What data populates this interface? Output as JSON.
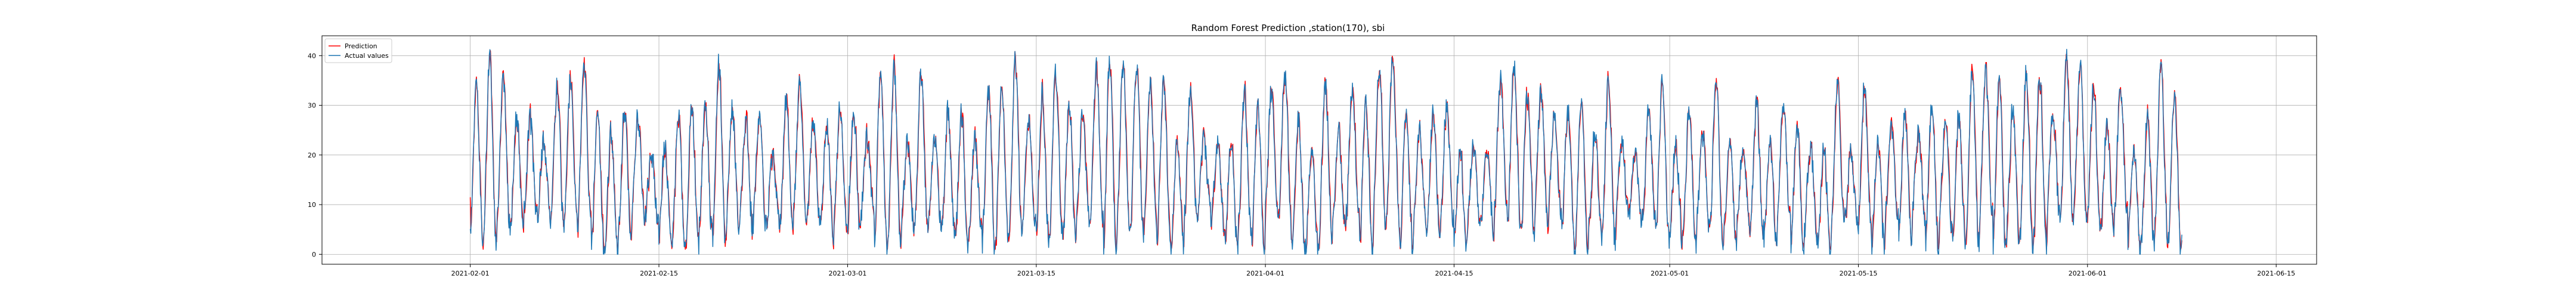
{
  "chart_data": {
    "type": "line",
    "title": "Random Forest Prediction ,station(170), sbi",
    "xlabel": "",
    "ylabel": "",
    "x_range": [
      "2021-01-20",
      "2021-06-20"
    ],
    "xlim": [
      "2021-01-21",
      "2021-06-18"
    ],
    "ylim": [
      -2,
      44
    ],
    "x_ticks": [
      "2021-02-01",
      "2021-02-15",
      "2021-03-01",
      "2021-03-15",
      "2021-04-01",
      "2021-04-15",
      "2021-05-01",
      "2021-05-15",
      "2021-06-01",
      "2021-06-15"
    ],
    "y_ticks": [
      0,
      10,
      20,
      30,
      40
    ],
    "grid": true,
    "legend_position": "top-left",
    "series": [
      {
        "name": "Prediction",
        "color": "#ff0000"
      },
      {
        "name": "Actual values",
        "color": "#1f77b4"
      }
    ],
    "data": {
      "start": "2021-02-01",
      "end": "2021-06-08",
      "sample_interval_hours": 1,
      "actual_range": [
        0,
        42
      ],
      "daily_cycle": true
    }
  }
}
